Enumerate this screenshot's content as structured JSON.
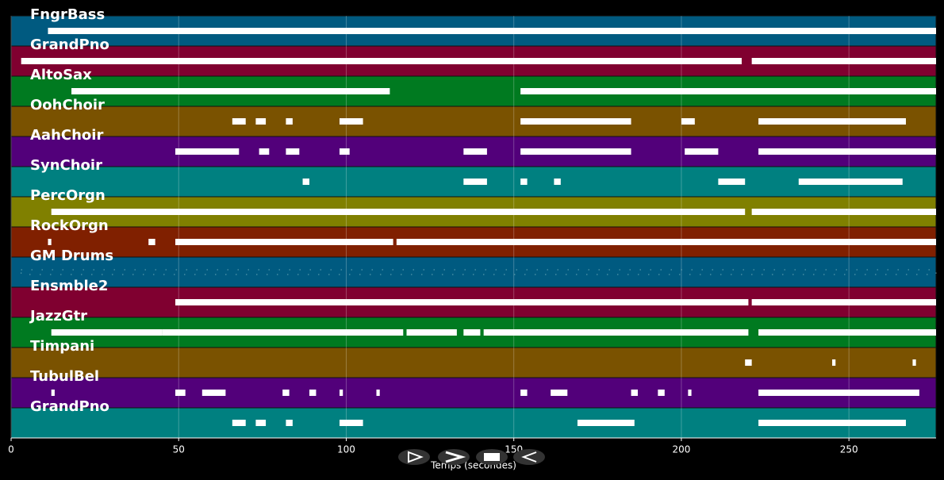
{
  "chart_data": {
    "type": "piano_roll",
    "xlabel": "Temps (secondes)",
    "xlim": [
      0,
      276
    ],
    "xticks": [
      0,
      50,
      100,
      150,
      200,
      250
    ],
    "series": [
      {
        "name": "FngrBass",
        "color": "#005a80",
        "segments": [
          [
            11,
            276
          ]
        ]
      },
      {
        "name": "GrandPno",
        "color": "#800030",
        "segments": [
          [
            3,
            218
          ],
          [
            221,
            276
          ]
        ]
      },
      {
        "name": "AltoSax",
        "color": "#007a20",
        "segments": [
          [
            18,
            113
          ],
          [
            152,
            276
          ]
        ]
      },
      {
        "name": "OohChoir",
        "color": "#7a5200",
        "segments": [
          [
            66,
            70
          ],
          [
            73,
            76
          ],
          [
            82,
            84
          ],
          [
            98,
            105
          ],
          [
            152,
            185
          ],
          [
            200,
            204
          ],
          [
            223,
            267
          ]
        ]
      },
      {
        "name": "AahChoir",
        "color": "#52007a",
        "segments": [
          [
            49,
            68
          ],
          [
            74,
            77
          ],
          [
            82,
            86
          ],
          [
            98,
            101
          ],
          [
            135,
            142
          ],
          [
            152,
            185
          ],
          [
            201,
            211
          ],
          [
            223,
            276
          ]
        ]
      },
      {
        "name": "SynChoir",
        "color": "#008080",
        "segments": [
          [
            87,
            89
          ],
          [
            135,
            142
          ],
          [
            152,
            154
          ],
          [
            162,
            164
          ],
          [
            211,
            219
          ],
          [
            235,
            266
          ]
        ]
      },
      {
        "name": "PercOrgn",
        "color": "#808000",
        "segments": [
          [
            12,
            219
          ],
          [
            221,
            276
          ]
        ]
      },
      {
        "name": "RockOrgn",
        "color": "#802000",
        "segments": [
          [
            11,
            12
          ],
          [
            41,
            43
          ],
          [
            49,
            114
          ],
          [
            115,
            276
          ]
        ]
      },
      {
        "name": "GM Drums",
        "color": "#005a80",
        "segments": [
          [
            3,
            276
          ]
        ]
      },
      {
        "name": "Ensmble2",
        "color": "#800030",
        "segments": [
          [
            49,
            220
          ],
          [
            221,
            276
          ]
        ]
      },
      {
        "name": "JazzGtr",
        "color": "#007a20",
        "segments": [
          [
            12,
            45
          ],
          [
            45,
            117
          ],
          [
            118,
            133
          ],
          [
            135,
            140
          ],
          [
            141,
            220
          ],
          [
            223,
            276
          ]
        ]
      },
      {
        "name": "Timpani",
        "color": "#7a5200",
        "segments": [
          [
            219,
            221
          ],
          [
            245,
            246
          ],
          [
            269,
            270
          ]
        ]
      },
      {
        "name": "TubulBel",
        "color": "#52007a",
        "segments": [
          [
            12,
            13
          ],
          [
            49,
            52
          ],
          [
            57,
            64
          ],
          [
            81,
            83
          ],
          [
            89,
            91
          ],
          [
            98,
            99
          ],
          [
            109,
            110
          ],
          [
            152,
            154
          ],
          [
            161,
            166
          ],
          [
            185,
            187
          ],
          [
            193,
            195
          ],
          [
            202,
            203
          ],
          [
            223,
            271
          ]
        ]
      },
      {
        "name": "GrandPno",
        "color": "#008080",
        "segments": [
          [
            66,
            70
          ],
          [
            73,
            76
          ],
          [
            82,
            84
          ],
          [
            98,
            105
          ],
          [
            169,
            186
          ],
          [
            223,
            267
          ]
        ]
      }
    ]
  }
}
